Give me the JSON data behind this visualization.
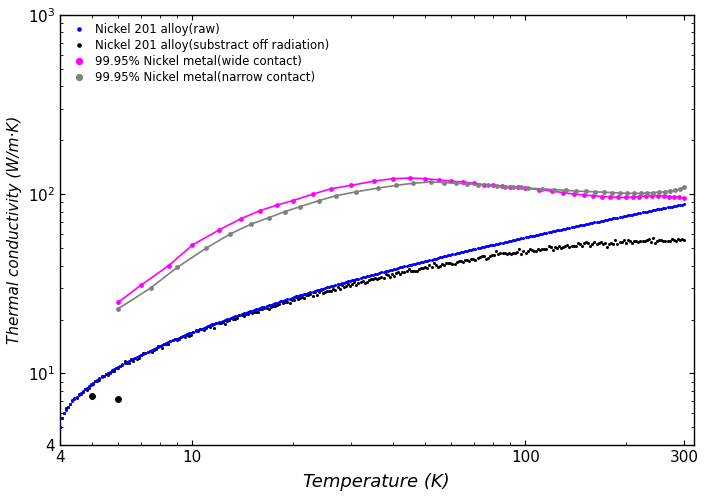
{
  "title": "",
  "xlabel": "Temperature (K)",
  "ylabel": "Thermal conductivity (W/m·K)",
  "xlim": [
    4,
    320
  ],
  "ylim": [
    4,
    1000
  ],
  "legend_labels": [
    "Nickel 201 alloy(raw)",
    "Nickel 201 alloy(substract off radiation)",
    "99.95% Nickel metal(wide contact)",
    "99.95% Nickel metal(narrow contact)"
  ],
  "colors": {
    "raw": "#0000ff",
    "substract": "#000000",
    "wide": "#ff00ff",
    "narrow": "#808080"
  },
  "background_color": "#ffffff",
  "xticks": [
    4,
    10,
    100,
    300
  ],
  "yticks": [
    4,
    10,
    100,
    1000
  ]
}
